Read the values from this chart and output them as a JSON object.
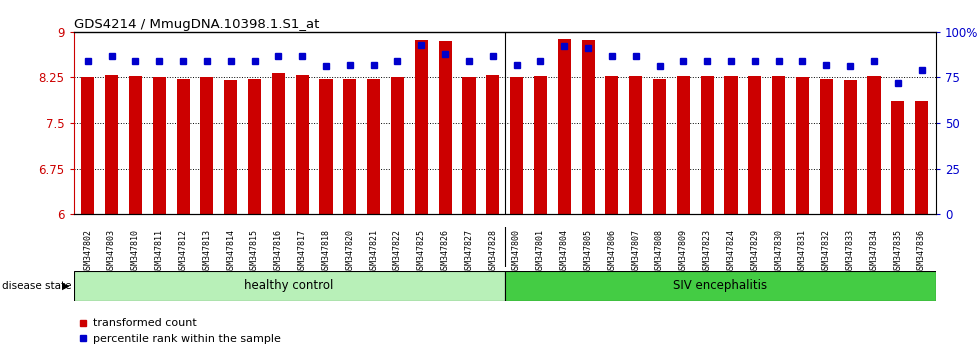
{
  "title": "GDS4214 / MmugDNA.10398.1.S1_at",
  "samples": [
    "GSM347802",
    "GSM347803",
    "GSM347810",
    "GSM347811",
    "GSM347812",
    "GSM347813",
    "GSM347814",
    "GSM347815",
    "GSM347816",
    "GSM347817",
    "GSM347818",
    "GSM347820",
    "GSM347821",
    "GSM347822",
    "GSM347825",
    "GSM347826",
    "GSM347827",
    "GSM347828",
    "GSM347800",
    "GSM347801",
    "GSM347804",
    "GSM347805",
    "GSM347806",
    "GSM347807",
    "GSM347808",
    "GSM347809",
    "GSM347823",
    "GSM347824",
    "GSM347829",
    "GSM347830",
    "GSM347831",
    "GSM347832",
    "GSM347833",
    "GSM347834",
    "GSM347835",
    "GSM347836"
  ],
  "bar_values": [
    8.26,
    8.29,
    8.28,
    8.25,
    8.22,
    8.25,
    8.2,
    8.22,
    8.33,
    8.29,
    8.22,
    8.22,
    8.22,
    8.25,
    8.87,
    8.85,
    8.25,
    8.29,
    8.25,
    8.28,
    8.88,
    8.87,
    8.28,
    8.28,
    8.22,
    8.28,
    8.28,
    8.28,
    8.28,
    8.28,
    8.26,
    8.22,
    8.2,
    8.27,
    7.87,
    7.87
  ],
  "percentile_values": [
    84,
    87,
    84,
    84,
    84,
    84,
    84,
    84,
    87,
    87,
    81,
    82,
    82,
    84,
    93,
    88,
    84,
    87,
    82,
    84,
    92,
    91,
    87,
    87,
    81,
    84,
    84,
    84,
    84,
    84,
    84,
    82,
    81,
    84,
    72,
    79
  ],
  "healthy_count": 18,
  "siv_count": 18,
  "bar_color": "#cc0000",
  "dot_color": "#0000cc",
  "bar_bottom": 6.0,
  "ylim_left": [
    6.0,
    9.0
  ],
  "ylim_right": [
    0,
    100
  ],
  "yticks_left": [
    6.0,
    6.75,
    7.5,
    8.25,
    9.0
  ],
  "ytick_labels_left": [
    "6",
    "6.75",
    "7.5",
    "8.25",
    "9"
  ],
  "yticks_right": [
    0,
    25,
    50,
    75,
    100
  ],
  "ytick_labels_right": [
    "0",
    "25",
    "50",
    "75",
    "100%"
  ],
  "healthy_label": "healthy control",
  "siv_label": "SIV encephalitis",
  "disease_state_label": "disease state",
  "legend_bar_label": "transformed count",
  "legend_dot_label": "percentile rank within the sample",
  "healthy_color": "#b8f0b8",
  "siv_color": "#44cc44",
  "bg_color": "#ffffff",
  "xlabel_color": "#cc0000",
  "ylabel_right_color": "#0000cc",
  "tick_label_bg": "#d0d0d0",
  "grid_yticks": [
    6.75,
    7.5,
    8.25
  ]
}
